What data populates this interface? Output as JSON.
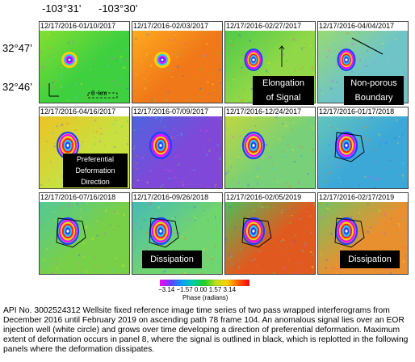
{
  "map": {
    "lon_labels": [
      "-103°31’",
      "-103°30’"
    ],
    "lat_labels": [
      "32°47’",
      "32°46’"
    ],
    "scale_label": "0  km"
  },
  "panels": [
    {
      "label": "12/17/2016-01/10/2017",
      "bg": "#3fd040",
      "bg2": "#8ae030"
    },
    {
      "label": "12/17/2016-02/03/2017",
      "bg": "#f07818",
      "bg2": "#ffb020"
    },
    {
      "label": "12/17/2016-02/27/2017",
      "bg": "#90d848",
      "bg2": "#48c848"
    },
    {
      "label": "12/17/2016-04/04/2017",
      "bg": "#6fc4c8",
      "bg2": "#9cdc6a"
    },
    {
      "label": "12/17/2016-04/16/2017",
      "bg": "#c8e040",
      "bg2": "#f0c020"
    },
    {
      "label": "12/17/2016-07/09/2017",
      "bg": "#8048d8",
      "bg2": "#4868e0"
    },
    {
      "label": "12/17/2016-12/24/2017",
      "bg": "#78d078",
      "bg2": "#c8d838"
    },
    {
      "label": "12/17/2016-01/17/2018",
      "bg": "#3ca8d8",
      "bg2": "#68c8b8"
    },
    {
      "label": "12/17/2016-07/16/2018",
      "bg": "#78d048",
      "bg2": "#50c8a0"
    },
    {
      "label": "12/17/2016-09/26/2018",
      "bg": "#70d470",
      "bg2": "#40b8c0"
    },
    {
      "label": "12/17/2016-02/05/2019",
      "bg": "#e05a20",
      "bg2": "#40c860"
    },
    {
      "label": "12/17/2016-02/17/2019",
      "bg": "#e89030",
      "bg2": "#68c868"
    }
  ],
  "annotations": {
    "elongation": [
      "Elongation",
      "of Signal"
    ],
    "nonporous": [
      "Non-porous",
      "Boundary"
    ],
    "preferential": [
      "Preferential",
      "Deformation",
      "Direction"
    ],
    "dissipation1": "Dissipation",
    "dissipation2": "Dissipation"
  },
  "colorbar": {
    "ticks": "−3.14 −1.57  0.00  1.57  3.14",
    "unit": "Phase (radians)",
    "colors": [
      "#ff00ff",
      "#6040ff",
      "#00a0ff",
      "#00d0a0",
      "#20d020",
      "#c0e020",
      "#ffd000",
      "#ff6000",
      "#ff0000"
    ]
  },
  "caption": "API No. 3002524312 Wellsite fixed reference image time series of two pass wrapped interferograms from December 2016 until February 2019 on ascending path 78 frame 104. An anomalous signal lies over an EOR injection well (white circle) and grows over time developing a direction of preferential deformation. Maximum extent of deformation occurs in panel 8, where the signal is outlined in black, which is replotted in the following panels where the deformation dissipates."
}
